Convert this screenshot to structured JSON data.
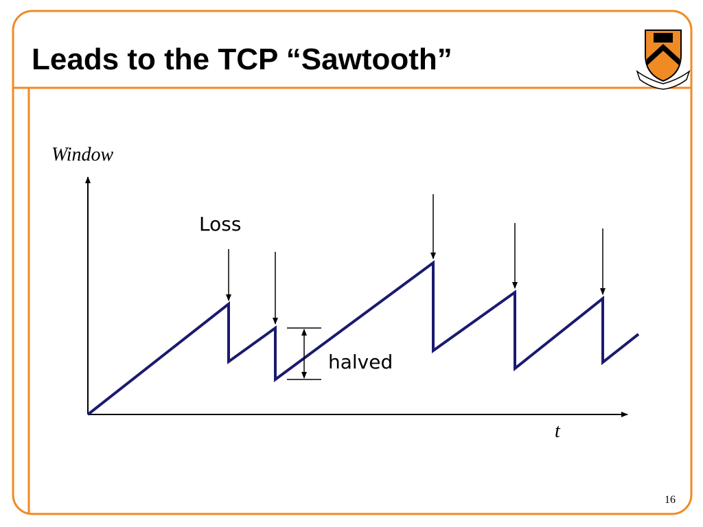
{
  "slide": {
    "title": "Leads to the TCP “Sawtooth”",
    "page_number": "16"
  },
  "diagram": {
    "y_axis_label": "Window",
    "x_axis_label": "t",
    "loss_label": "Loss",
    "halved_label": "halved"
  }
}
